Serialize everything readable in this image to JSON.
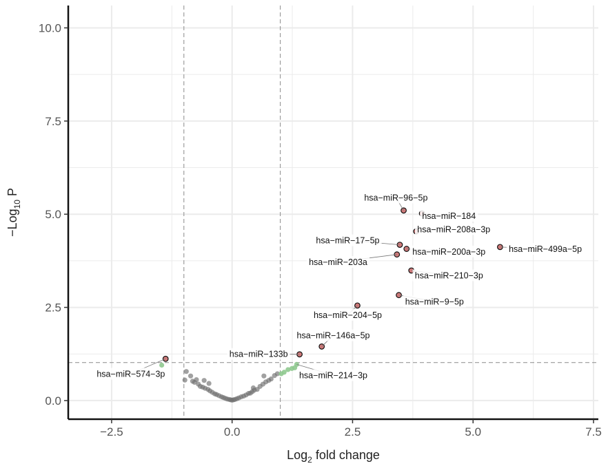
{
  "chart_data": {
    "type": "scatter",
    "title": "",
    "xlabel": {
      "pre": "Log",
      "sub": "2",
      "post": " fold change"
    },
    "ylabel": {
      "pre": "−Log",
      "sub": "10",
      "post": " P"
    },
    "xlim": [
      -3.4,
      7.6
    ],
    "ylim": [
      -0.5,
      10.6
    ],
    "xticks": [
      -2.5,
      0.0,
      2.5,
      5.0,
      7.5
    ],
    "xtick_labels": [
      "−2.5",
      "0.0",
      "2.5",
      "5.0",
      "7.5"
    ],
    "yticks": [
      0.0,
      2.5,
      5.0,
      7.5,
      10.0
    ],
    "ytick_labels": [
      "0.0",
      "2.5",
      "5.0",
      "7.5",
      "10.0"
    ],
    "grid": true,
    "cutoffs": {
      "fc_left": -1.0,
      "fc_right": 1.0,
      "p": 1.02
    },
    "colors": {
      "ns": "#6e6e6e",
      "fc_only": "#8fc98f",
      "sig": "#d07a7a",
      "sig_edge": "#111111",
      "cutoff": "#8a8a8a",
      "grid": "#ebebeb"
    },
    "series": [
      {
        "category": "ns",
        "points": [
          [
            -0.98,
            0.55
          ],
          [
            -0.95,
            0.78
          ],
          [
            -0.86,
            0.66
          ],
          [
            -0.82,
            0.52
          ],
          [
            -0.78,
            0.49
          ],
          [
            -0.74,
            0.56
          ],
          [
            -0.7,
            0.44
          ],
          [
            -0.66,
            0.38
          ],
          [
            -0.61,
            0.36
          ],
          [
            -0.56,
            0.33
          ],
          [
            -0.5,
            0.3
          ],
          [
            -0.46,
            0.26
          ],
          [
            -0.41,
            0.22
          ],
          [
            -0.36,
            0.18
          ],
          [
            -0.32,
            0.16
          ],
          [
            -0.27,
            0.13
          ],
          [
            -0.22,
            0.1
          ],
          [
            -0.18,
            0.08
          ],
          [
            -0.14,
            0.06
          ],
          [
            -0.1,
            0.04
          ],
          [
            -0.06,
            0.03
          ],
          [
            -0.03,
            0.02
          ],
          [
            0.0,
            0.01
          ],
          [
            0.03,
            0.02
          ],
          [
            0.06,
            0.03
          ],
          [
            0.1,
            0.05
          ],
          [
            0.14,
            0.07
          ],
          [
            0.19,
            0.1
          ],
          [
            0.24,
            0.12
          ],
          [
            0.29,
            0.15
          ],
          [
            0.34,
            0.19
          ],
          [
            0.38,
            0.2
          ],
          [
            0.42,
            0.24
          ],
          [
            0.46,
            0.28
          ],
          [
            0.52,
            0.3
          ],
          [
            0.58,
            0.38
          ],
          [
            0.64,
            0.44
          ],
          [
            0.7,
            0.5
          ],
          [
            0.76,
            0.54
          ],
          [
            0.81,
            0.58
          ],
          [
            0.88,
            0.67
          ],
          [
            0.94,
            0.72
          ],
          [
            -0.58,
            0.54
          ],
          [
            -0.48,
            0.46
          ],
          [
            0.44,
            0.34
          ],
          [
            0.66,
            0.66
          ]
        ]
      },
      {
        "category": "fc_only",
        "points": [
          [
            -1.46,
            0.95
          ],
          [
            1.02,
            0.72
          ],
          [
            1.08,
            0.76
          ],
          [
            1.16,
            0.83
          ],
          [
            1.24,
            0.86
          ],
          [
            1.3,
            0.88
          ],
          [
            1.34,
            0.97
          ]
        ]
      },
      {
        "category": "sig",
        "points": [
          [
            -1.38,
            1.12
          ],
          [
            1.4,
            1.24
          ],
          [
            1.86,
            1.45
          ],
          [
            2.6,
            2.55
          ],
          [
            3.46,
            2.83
          ],
          [
            3.42,
            3.92
          ],
          [
            3.48,
            4.18
          ],
          [
            3.62,
            4.07
          ],
          [
            3.72,
            3.49
          ],
          [
            3.82,
            4.54
          ],
          [
            3.56,
            5.1
          ],
          [
            3.94,
            5.02
          ],
          [
            5.56,
            4.12
          ]
        ]
      }
    ],
    "labels": [
      {
        "text": "hsa−miR−574−3p",
        "point": [
          -1.38,
          1.12
        ],
        "at": [
          -2.1,
          0.72
        ]
      },
      {
        "text": "hsa−miR−133b",
        "point": [
          1.4,
          1.24
        ],
        "at": [
          0.55,
          1.25
        ]
      },
      {
        "text": "hsa−miR−214−3p",
        "point": [
          1.34,
          0.97
        ],
        "at": [
          2.1,
          0.68
        ]
      },
      {
        "text": "hsa−miR−146a−5p",
        "point": [
          1.86,
          1.45
        ],
        "at": [
          2.1,
          1.75
        ]
      },
      {
        "text": "hsa−miR−204−5p",
        "point": [
          2.6,
          2.55
        ],
        "at": [
          2.4,
          2.3
        ]
      },
      {
        "text": "hsa−miR−9−5p",
        "point": [
          3.46,
          2.83
        ],
        "at": [
          4.2,
          2.66
        ]
      },
      {
        "text": "hsa−miR−210−3p",
        "point": [
          3.72,
          3.49
        ],
        "at": [
          4.5,
          3.36
        ]
      },
      {
        "text": "hsa−miR−203a",
        "point": [
          3.42,
          3.92
        ],
        "at": [
          2.2,
          3.72
        ]
      },
      {
        "text": "hsa−miR−17−5p",
        "point": [
          3.48,
          4.18
        ],
        "at": [
          2.4,
          4.3
        ]
      },
      {
        "text": "hsa−miR−200a−3p",
        "point": [
          3.62,
          4.07
        ],
        "at": [
          4.5,
          4.0
        ]
      },
      {
        "text": "hsa−miR−208a−3p",
        "point": [
          3.82,
          4.54
        ],
        "at": [
          4.6,
          4.6
        ]
      },
      {
        "text": "hsa−miR−184",
        "point": [
          3.94,
          5.02
        ],
        "at": [
          4.5,
          4.96
        ]
      },
      {
        "text": "hsa−miR−96−5p",
        "point": [
          3.56,
          5.1
        ],
        "at": [
          3.4,
          5.45
        ]
      },
      {
        "text": "hsa−miR−499a−5p",
        "point": [
          5.56,
          4.12
        ],
        "at": [
          6.5,
          4.07
        ]
      }
    ]
  }
}
